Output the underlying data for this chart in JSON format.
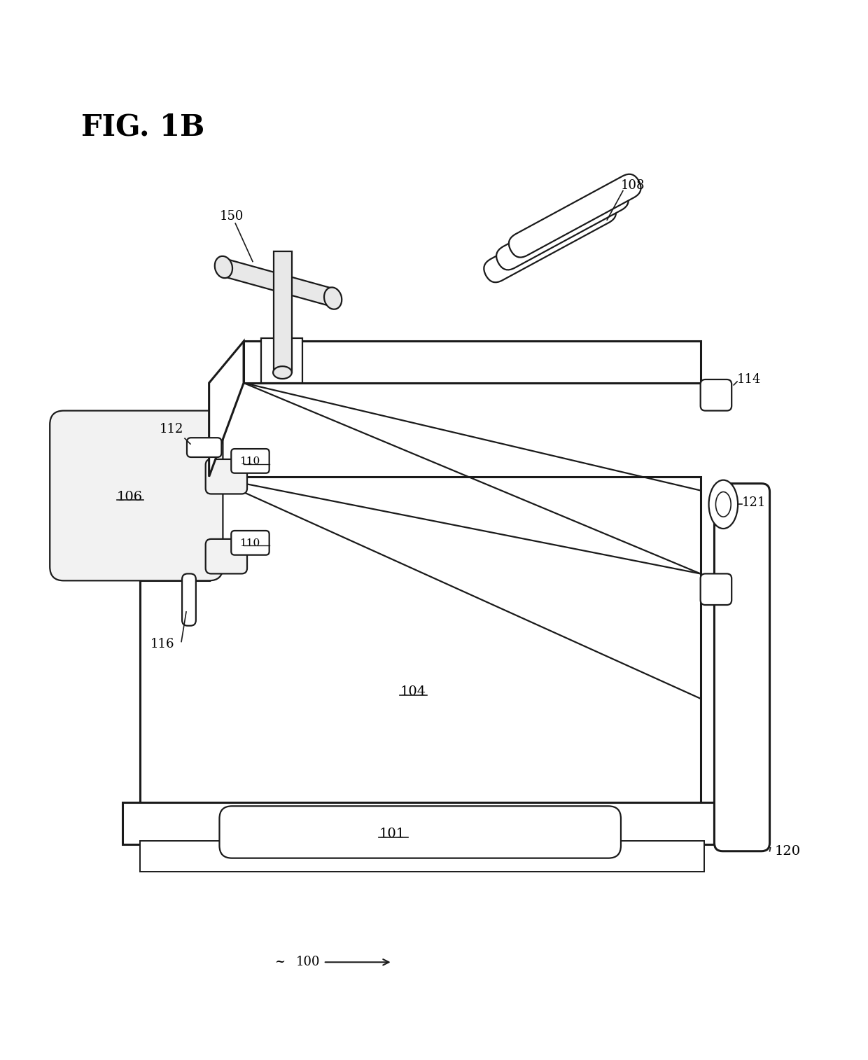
{
  "fig_label": "FIG. 1B",
  "bg_color": "#ffffff",
  "lc": "#1a1a1a",
  "lw": 1.6,
  "lw_thick": 2.2,
  "fill_gray": "#e8e8e8",
  "fill_light": "#f2f2f2"
}
